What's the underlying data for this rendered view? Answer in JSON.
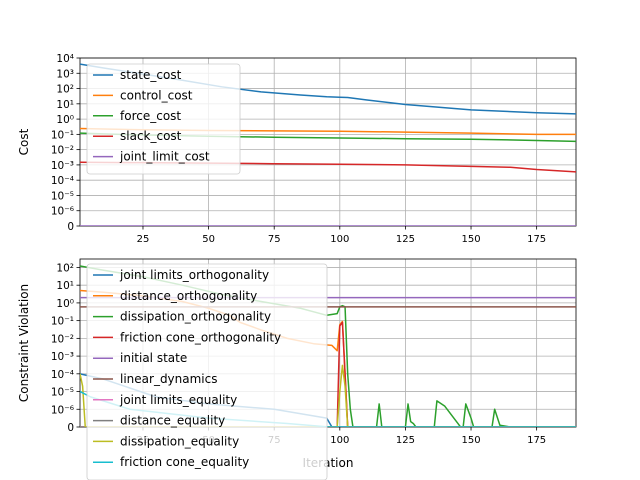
{
  "chart_data": [
    {
      "type": "line",
      "title": "",
      "xlabel": "",
      "ylabel": "Cost",
      "yscale": "symlog",
      "xlim": [
        1,
        190
      ],
      "ylim": [
        0,
        10000
      ],
      "grid": true,
      "legend_position": "upper-left",
      "x_ticks": [
        25,
        50,
        75,
        100,
        125,
        150,
        175
      ],
      "x_tick_labels": [
        "25",
        "50",
        "75",
        "100",
        "125",
        "150",
        "175"
      ],
      "y_ticks": [
        0,
        1e-06,
        1e-05,
        0.0001,
        0.001,
        0.01,
        0.1,
        1,
        10,
        100,
        1000,
        10000
      ],
      "y_tick_labels": [
        "0",
        "10⁻⁶",
        "10⁻⁵",
        "10⁻⁴",
        "10⁻³",
        "10⁻²",
        "10⁻¹",
        "10⁰",
        "10¹",
        "10²",
        "10³",
        "10⁴"
      ],
      "series": [
        {
          "name": "state_cost",
          "color": "#1f77b4",
          "points": [
            [
              1,
              4000
            ],
            [
              10,
              2200
            ],
            [
              25,
              900
            ],
            [
              40,
              350
            ],
            [
              55,
              130
            ],
            [
              70,
              60
            ],
            [
              85,
              38
            ],
            [
              95,
              29
            ],
            [
              100,
              27
            ],
            [
              103,
              26
            ],
            [
              110,
              18
            ],
            [
              125,
              9
            ],
            [
              150,
              4
            ],
            [
              175,
              2.6
            ],
            [
              190,
              2.2
            ]
          ]
        },
        {
          "name": "control_cost",
          "color": "#ff7f0e",
          "points": [
            [
              1,
              0.24
            ],
            [
              25,
              0.2
            ],
            [
              50,
              0.18
            ],
            [
              75,
              0.17
            ],
            [
              100,
              0.16
            ],
            [
              125,
              0.14
            ],
            [
              150,
              0.12
            ],
            [
              175,
              0.1
            ],
            [
              190,
              0.1
            ]
          ]
        },
        {
          "name": "force_cost",
          "color": "#2ca02c",
          "points": [
            [
              1,
              0.12
            ],
            [
              25,
              0.09
            ],
            [
              50,
              0.075
            ],
            [
              75,
              0.065
            ],
            [
              100,
              0.058
            ],
            [
              125,
              0.052
            ],
            [
              150,
              0.048
            ],
            [
              175,
              0.04
            ],
            [
              190,
              0.035
            ]
          ]
        },
        {
          "name": "slack_cost",
          "color": "#d62728",
          "points": [
            [
              1,
              0.0015
            ],
            [
              25,
              0.0014
            ],
            [
              50,
              0.0013
            ],
            [
              75,
              0.0012
            ],
            [
              100,
              0.0011
            ],
            [
              125,
              0.001
            ],
            [
              150,
              0.0008
            ],
            [
              165,
              0.0007
            ],
            [
              175,
              0.0005
            ],
            [
              190,
              0.00035
            ]
          ]
        },
        {
          "name": "joint_limit_cost",
          "color": "#9467bd",
          "points": [
            [
              1,
              0
            ],
            [
              190,
              0
            ]
          ]
        }
      ]
    },
    {
      "type": "line",
      "title": "",
      "xlabel": "Iteration",
      "ylabel": "Constraint Violation",
      "yscale": "symlog",
      "xlim": [
        1,
        190
      ],
      "ylim": [
        0,
        300
      ],
      "grid": true,
      "legend_position": "upper-left",
      "x_ticks": [
        25,
        50,
        75,
        100,
        125,
        150,
        175
      ],
      "x_tick_labels": [
        "25",
        "50",
        "75",
        "100",
        "125",
        "150",
        "175"
      ],
      "y_ticks": [
        0,
        1e-06,
        1e-05,
        0.0001,
        0.001,
        0.01,
        0.1,
        1,
        10,
        100
      ],
      "y_tick_labels": [
        "0",
        "10⁻⁶",
        "10⁻⁵",
        "10⁻⁴",
        "10⁻³",
        "10⁻²",
        "10⁻¹",
        "10⁰",
        "10¹",
        "10²"
      ],
      "series": [
        {
          "name": "joint limits_orthogonality",
          "color": "#1f77b4",
          "points": [
            [
              1,
              0.0001
            ],
            [
              10,
              5e-05
            ],
            [
              30,
              5e-06
            ],
            [
              50,
              2e-06
            ],
            [
              60,
              1.5e-06
            ],
            [
              75,
              1e-06
            ],
            [
              95,
              5e-07
            ],
            [
              97,
              0
            ],
            [
              190,
              0
            ]
          ]
        },
        {
          "name": "distance_orthogonality",
          "color": "#ff7f0e",
          "points": [
            [
              1,
              5
            ],
            [
              10,
              4
            ],
            [
              25,
              2.5
            ],
            [
              40,
              1.2
            ],
            [
              50,
              0.5
            ],
            [
              58,
              0.2
            ],
            [
              62,
              0.08
            ],
            [
              70,
              0.03
            ],
            [
              80,
              0.01
            ],
            [
              90,
              0.005
            ],
            [
              97,
              0.004
            ],
            [
              99,
              0.002
            ],
            [
              100,
              0.06
            ],
            [
              101,
              0.09
            ],
            [
              102,
              0.0001
            ],
            [
              103,
              0
            ],
            [
              190,
              0
            ]
          ]
        },
        {
          "name": "dissipation_orthogonality",
          "color": "#2ca02c",
          "points": [
            [
              1,
              120
            ],
            [
              10,
              70
            ],
            [
              25,
              30
            ],
            [
              40,
              10
            ],
            [
              55,
              3
            ],
            [
              70,
              1.2
            ],
            [
              85,
              0.5
            ],
            [
              95,
              0.2
            ],
            [
              99,
              0.25
            ],
            [
              100,
              0.6
            ],
            [
              101,
              0.7
            ],
            [
              102,
              0.6
            ],
            [
              103,
              0.0001
            ],
            [
              104,
              1e-06
            ],
            [
              105,
              0
            ],
            [
              114,
              0
            ],
            [
              115,
              2e-06
            ],
            [
              116,
              0
            ],
            [
              125,
              0
            ],
            [
              126,
              2e-06
            ],
            [
              127,
              3e-07
            ],
            [
              128,
              2e-07
            ],
            [
              129,
              0
            ],
            [
              136,
              0
            ],
            [
              137,
              3e-06
            ],
            [
              140,
              1.5e-06
            ],
            [
              145,
              2e-07
            ],
            [
              146,
              0
            ],
            [
              147,
              0
            ],
            [
              148,
              2e-06
            ],
            [
              150,
              5e-07
            ],
            [
              151,
              0
            ],
            [
              158,
              0
            ],
            [
              159,
              1e-06
            ],
            [
              161,
              1e-07
            ],
            [
              165,
              0
            ],
            [
              190,
              0
            ]
          ]
        },
        {
          "name": "friction cone_orthogonality",
          "color": "#d62728",
          "points": [
            [
              1,
              0
            ],
            [
              99,
              0
            ],
            [
              100,
              0.05
            ],
            [
              101,
              0.08
            ],
            [
              102,
              0.0001
            ],
            [
              103,
              0
            ],
            [
              190,
              0
            ]
          ]
        },
        {
          "name": "initial state",
          "color": "#9467bd",
          "points": [
            [
              1,
              2
            ],
            [
              190,
              2
            ]
          ]
        },
        {
          "name": "linear_dynamics",
          "color": "#8c564b",
          "points": [
            [
              1,
              0.6
            ],
            [
              190,
              0.6
            ]
          ]
        },
        {
          "name": "joint limits_equality",
          "color": "#e377c2",
          "points": [
            [
              1,
              0
            ],
            [
              190,
              0
            ]
          ]
        },
        {
          "name": "distance_equality",
          "color": "#7f7f7f",
          "points": [
            [
              1,
              0
            ],
            [
              190,
              0
            ]
          ]
        },
        {
          "name": "dissipation_equality",
          "color": "#bcbd22",
          "points": [
            [
              1,
              0.0001
            ],
            [
              2,
              2e-05
            ],
            [
              3,
              0
            ],
            [
              99,
              0
            ],
            [
              100,
              1e-05
            ],
            [
              101,
              0.0003
            ],
            [
              102,
              2e-05
            ],
            [
              103,
              0
            ],
            [
              190,
              0
            ]
          ]
        },
        {
          "name": "friction cone_equality",
          "color": "#17becf",
          "points": [
            [
              1,
              1e-05
            ],
            [
              5,
              5e-06
            ],
            [
              20,
              1e-06
            ],
            [
              50,
              5e-07
            ],
            [
              80,
              2e-07
            ],
            [
              96,
              0
            ],
            [
              190,
              0
            ]
          ]
        }
      ]
    }
  ]
}
